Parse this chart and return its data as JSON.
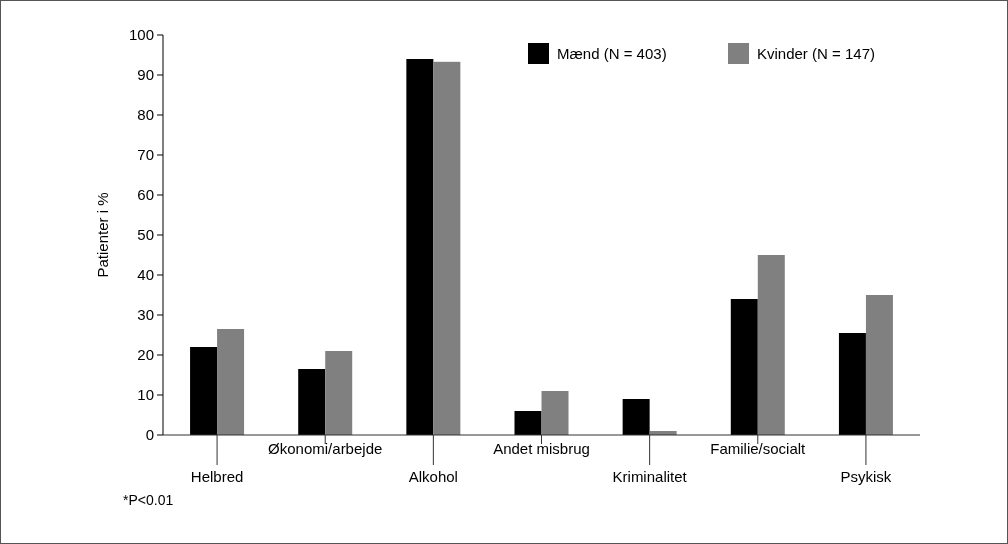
{
  "chart_data": {
    "type": "bar",
    "ylabel": "Patienter i %",
    "categories": [
      "Helbred",
      "Økonomi/arbejde",
      "Alkohol",
      "Andet misbrug",
      "Kriminalitet",
      "Familie/socialt",
      "Psykisk"
    ],
    "series": [
      {
        "name": "Mænd (N = 403)",
        "color": "#000000",
        "values": [
          22,
          16.5,
          94,
          6,
          9,
          34,
          25.5
        ]
      },
      {
        "name": "Kvinder (N = 147)",
        "color": "#808080",
        "values": [
          26.5,
          21,
          93.3,
          11,
          1,
          45,
          35
        ]
      }
    ],
    "ylim": [
      0,
      100
    ],
    "yticks": [
      0,
      10,
      20,
      30,
      40,
      50,
      60,
      70,
      80,
      90,
      100
    ],
    "grid": false,
    "legend": "top right",
    "annotations": [
      "*P<0.01"
    ]
  }
}
